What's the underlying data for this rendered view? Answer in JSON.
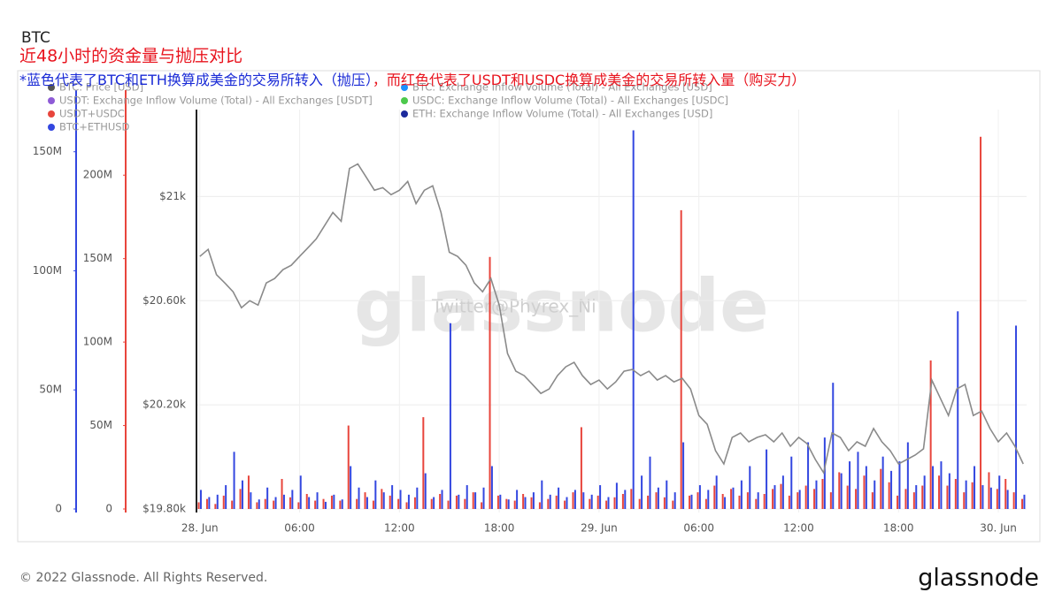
{
  "chart_data": {
    "type": "bar-line",
    "title": "BTC",
    "subtitle": "近48小时的资金量与抛压对比",
    "annotation_blue": "*蓝色代表了BTC和ETH换算成美金的交易所转入（抛压）",
    "annotation_red": "，而红色代表了USDT和USDC换算成美金的交易所转入量（购买力）",
    "watermark": "glassnode",
    "watermark_note": "Twitter@Phyrex_Ni",
    "footer": "© 2022 Glassnode. All Rights Reserved.",
    "logo": "glassnode",
    "x": [
      0,
      0.5,
      1,
      1.5,
      2,
      2.5,
      3,
      3.5,
      4,
      4.5,
      5,
      5.5,
      6,
      6.5,
      7,
      7.5,
      8,
      8.5,
      9,
      9.5,
      10,
      10.5,
      11,
      11.5,
      12,
      12.5,
      13,
      13.5,
      14,
      14.5,
      15,
      15.5,
      16,
      16.5,
      17,
      17.5,
      18,
      18.5,
      19,
      19.5,
      20,
      20.5,
      21,
      21.5,
      22,
      22.5,
      23,
      23.5,
      24,
      24.5,
      25,
      25.5,
      26,
      26.5,
      27,
      27.5,
      28,
      28.5,
      29,
      29.5,
      30,
      30.5,
      31,
      31.5,
      32,
      32.5,
      33,
      33.5,
      34,
      34.5,
      35,
      35.5,
      36,
      36.5,
      37,
      37.5,
      38,
      38.5,
      39,
      39.5,
      40,
      40.5,
      41,
      41.5,
      42,
      42.5,
      43,
      43.5,
      44,
      44.5,
      45,
      45.5,
      46,
      46.5,
      47,
      47.5,
      48,
      48.5,
      49,
      49.5
    ],
    "xlim": [
      -0.2,
      49.7
    ],
    "xticks": [
      {
        "value": 0,
        "label": "28. Jun"
      },
      {
        "value": 6,
        "label": "06:00"
      },
      {
        "value": 12,
        "label": "12:00"
      },
      {
        "value": 18,
        "label": "18:00"
      },
      {
        "value": 24,
        "label": "29. Jun"
      },
      {
        "value": 30,
        "label": "06:00"
      },
      {
        "value": 36,
        "label": "12:00"
      },
      {
        "value": 42,
        "label": "18:00"
      },
      {
        "value": 48,
        "label": "30. Jun"
      }
    ],
    "ylim": [
      0,
      164000000
    ],
    "yticks": [
      0,
      {
        "value": 50000000,
        "label": "50M"
      },
      {
        "value": 100000000,
        "label": "100M"
      },
      {
        "value": 150000000,
        "label": "150M"
      }
    ],
    "y2lim": [
      0,
      234000000
    ],
    "y2ticks": [
      0,
      {
        "value": 50000000,
        "label": "50M"
      },
      {
        "value": 100000000,
        "label": "100M"
      },
      {
        "value": 150000000,
        "label": "150M"
      },
      {
        "value": 200000000,
        "label": "200M"
      }
    ],
    "y3lim": [
      19800,
      21300
    ],
    "y3ticks": [
      {
        "value": 19800,
        "label": "$19.80k"
      },
      {
        "value": 20200,
        "label": "$20.20k"
      },
      {
        "value": 20600,
        "label": "$20.60k"
      },
      {
        "value": 21000,
        "label": "$21k"
      }
    ],
    "grid": true,
    "series": [
      {
        "name": "BTC: Price [USD]",
        "type": "line",
        "axis": "y3",
        "color": "#555555",
        "line_color": "#8a8a8a",
        "values": [
          20770,
          20797,
          20700,
          20668,
          20634,
          20573,
          20600,
          20583,
          20668,
          20685,
          20719,
          20736,
          20770,
          20803,
          20837,
          20888,
          20939,
          20905,
          21108,
          21125,
          21075,
          21024,
          21034,
          21007,
          21024,
          21058,
          20973,
          21024,
          21041,
          20939,
          20786,
          20770,
          20736,
          20668,
          20634,
          20685,
          20583,
          20397,
          20329,
          20312,
          20278,
          20244,
          20261,
          20312,
          20346,
          20363,
          20312,
          20278,
          20295,
          20261,
          20288,
          20329,
          20336,
          20312,
          20329,
          20295,
          20312,
          20288,
          20302,
          20261,
          20159,
          20125,
          20024,
          19973,
          20075,
          20092,
          20058,
          20075,
          20085,
          20058,
          20092,
          20041,
          20075,
          20051,
          19990,
          19939,
          20092,
          20075,
          20024,
          20058,
          20041,
          20109,
          20058,
          20024,
          19973,
          19990,
          20007,
          20031,
          20295,
          20227,
          20159,
          20261,
          20278,
          20159,
          20176,
          20109,
          20058,
          20092,
          20041,
          19973
        ]
      },
      {
        "name": "USDT+USDC",
        "type": "bar",
        "axis": "y2",
        "color": "#e8453c",
        "values": [
          4000000,
          6000000,
          3000000,
          8000000,
          5000000,
          12000000,
          20000000,
          4000000,
          6000000,
          5000000,
          18000000,
          7000000,
          4000000,
          9000000,
          5000000,
          6000000,
          8000000,
          5000000,
          50000000,
          6000000,
          10000000,
          5000000,
          12000000,
          8000000,
          6000000,
          4000000,
          7000000,
          55000000,
          6000000,
          9000000,
          5000000,
          8000000,
          6000000,
          10000000,
          4000000,
          151000000,
          8000000,
          6000000,
          5000000,
          9000000,
          7000000,
          4000000,
          6000000,
          8000000,
          5000000,
          10000000,
          49000000,
          6000000,
          8000000,
          5000000,
          7000000,
          9000000,
          12000000,
          6000000,
          8000000,
          10000000,
          7000000,
          5000000,
          179000000,
          8000000,
          10000000,
          6000000,
          14000000,
          9000000,
          12000000,
          8000000,
          10000000,
          6000000,
          9000000,
          12000000,
          15000000,
          8000000,
          10000000,
          14000000,
          12000000,
          18000000,
          10000000,
          22000000,
          14000000,
          12000000,
          20000000,
          10000000,
          24000000,
          16000000,
          8000000,
          12000000,
          10000000,
          14000000,
          89000000,
          20000000,
          14000000,
          18000000,
          10000000,
          16000000,
          223000000,
          22000000,
          12000000,
          18000000,
          10000000,
          6000000
        ]
      },
      {
        "name": "BTC+ETHUSD",
        "type": "bar",
        "axis": "y",
        "color": "#3347e0",
        "values": [
          8000000,
          5000000,
          6000000,
          10000000,
          24000000,
          12000000,
          7000000,
          4000000,
          9000000,
          5000000,
          6000000,
          8000000,
          14000000,
          5000000,
          7000000,
          3000000,
          6000000,
          4000000,
          18000000,
          9000000,
          5000000,
          12000000,
          7000000,
          10000000,
          8000000,
          6000000,
          9000000,
          15000000,
          5000000,
          8000000,
          78000000,
          6000000,
          10000000,
          7000000,
          9000000,
          18000000,
          6000000,
          4000000,
          8000000,
          5000000,
          7000000,
          12000000,
          6000000,
          9000000,
          5000000,
          8000000,
          7000000,
          6000000,
          10000000,
          5000000,
          11000000,
          8000000,
          159000000,
          14000000,
          22000000,
          9000000,
          12000000,
          7000000,
          28000000,
          6000000,
          10000000,
          8000000,
          14000000,
          5000000,
          9000000,
          12000000,
          18000000,
          7000000,
          25000000,
          10000000,
          14000000,
          22000000,
          8000000,
          28000000,
          12000000,
          30000000,
          53000000,
          15000000,
          20000000,
          24000000,
          18000000,
          12000000,
          22000000,
          16000000,
          20000000,
          28000000,
          10000000,
          14000000,
          18000000,
          20000000,
          15000000,
          83000000,
          12000000,
          18000000,
          10000000,
          9000000,
          14000000,
          8000000,
          77000000,
          6000000
        ]
      }
    ],
    "other_legend_entries": [
      {
        "name": "USDT: Exchange Inflow Volume (Total) - All Exchanges [USDT]",
        "color": "#8e5bd6"
      },
      {
        "name": "BTC: Exchange Inflow Volume (Total) - All Exchanges [USD]",
        "color": "#1e90ff"
      },
      {
        "name": "USDC: Exchange Inflow Volume (Total) - All Exchanges [USDC]",
        "color": "#4cc94c"
      },
      {
        "name": "ETH: Exchange Inflow Volume (Total) - All Exchanges [USD]",
        "color": "#1c2a9c"
      }
    ]
  }
}
